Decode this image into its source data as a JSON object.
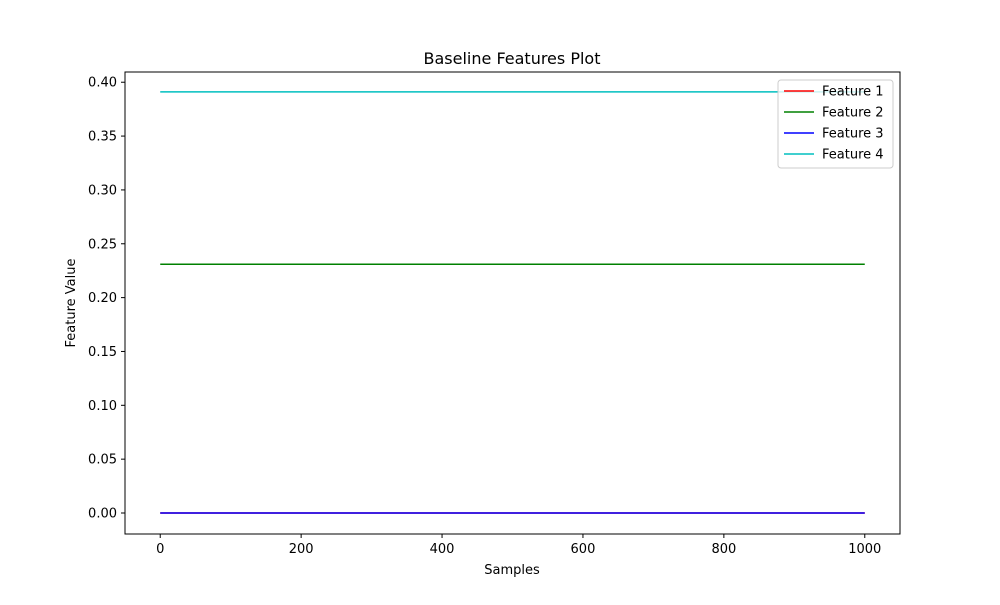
{
  "chart_data": {
    "type": "line",
    "title": "Baseline Features Plot",
    "xlabel": "Samples",
    "ylabel": "Feature Value",
    "xlim": [
      -50,
      1050
    ],
    "ylim": [
      -0.0195,
      0.4095
    ],
    "xticks": [
      0,
      200,
      400,
      600,
      800,
      1000
    ],
    "xtick_labels": [
      "0",
      "200",
      "400",
      "600",
      "800",
      "1000"
    ],
    "yticks": [
      0.0,
      0.05,
      0.1,
      0.15,
      0.2,
      0.25,
      0.3,
      0.35,
      0.4
    ],
    "ytick_labels": [
      "0.00",
      "0.05",
      "0.10",
      "0.15",
      "0.20",
      "0.25",
      "0.30",
      "0.35",
      "0.40"
    ],
    "grid": false,
    "legend_position": "top-right",
    "series": [
      {
        "name": "Feature 1",
        "color": "#ff0000",
        "x": [
          0,
          1000
        ],
        "y": [
          0.0,
          0.0
        ]
      },
      {
        "name": "Feature 2",
        "color": "#008000",
        "x": [
          0,
          1000
        ],
        "y": [
          0.231,
          0.231
        ]
      },
      {
        "name": "Feature 3",
        "color": "#0000ff",
        "x": [
          0,
          1000
        ],
        "y": [
          0.0,
          0.0
        ]
      },
      {
        "name": "Feature 4",
        "color": "#00bfbf",
        "x": [
          0,
          1000
        ],
        "y": [
          0.391,
          0.391
        ]
      }
    ]
  }
}
